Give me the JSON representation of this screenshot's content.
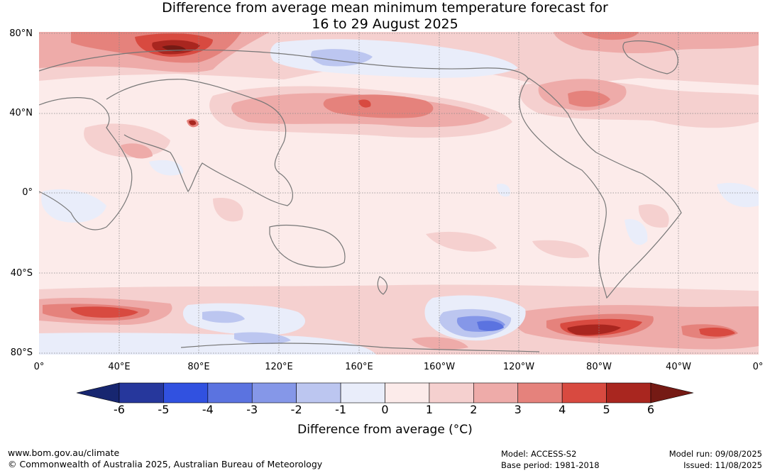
{
  "title": {
    "line1": "Difference from average mean minimum temperature forecast for",
    "line2": "16 to 29 August 2025"
  },
  "axes": {
    "lat_labels": [
      "80°N",
      "40°N",
      "0°",
      "40°S",
      "80°S"
    ],
    "lon_labels": [
      "0°",
      "40°E",
      "80°E",
      "120°E",
      "160°E",
      "160°W",
      "120°W",
      "80°W",
      "40°W",
      "0°"
    ]
  },
  "colorbar": {
    "ticks": [
      "-6",
      "-5",
      "-4",
      "-3",
      "-2",
      "-1",
      "0",
      "1",
      "2",
      "3",
      "4",
      "5",
      "6"
    ],
    "colors": [
      "#26379c",
      "#3151e0",
      "#5b73e0",
      "#8597e8",
      "#bcc6f0",
      "#e9edfa",
      "#fcebea",
      "#f5d0cf",
      "#eeaba9",
      "#e5827c",
      "#d84a40",
      "#a9261f"
    ],
    "under_color": "#172670",
    "over_color": "#751a14",
    "label": "Difference from average (°C)"
  },
  "footer": {
    "url": "www.bom.gov.au/climate",
    "copyright": "© Commonwealth of Australia 2025, Australian Bureau of Meteorology",
    "model": "Model: ACCESS-S2",
    "base_period": "Base period: 1981-2018",
    "model_run": "Model run: 09/08/2025",
    "issued": "Issued: 11/08/2025"
  }
}
